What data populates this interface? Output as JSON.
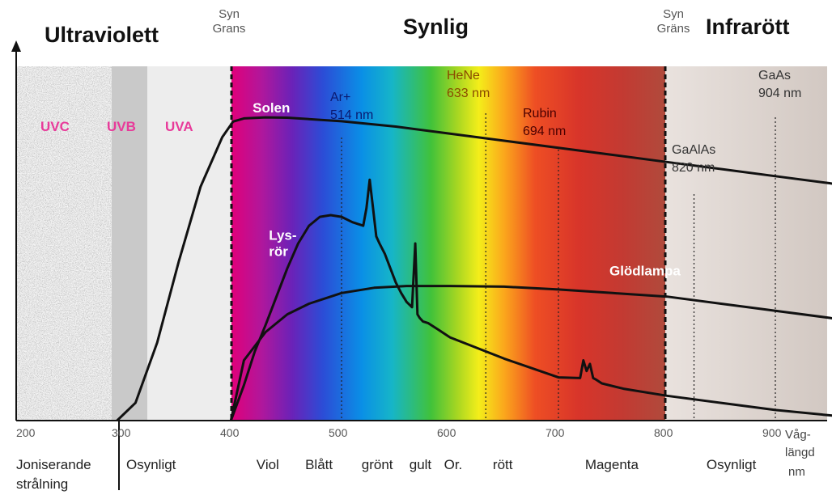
{
  "chart_data": {
    "type": "line",
    "xlim": [
      200,
      1000
    ],
    "x_ticks": [
      200,
      300,
      400,
      500,
      600,
      700,
      800,
      900
    ],
    "x_unit_label": [
      "Våg-",
      "längd",
      "nm"
    ],
    "region_titles": {
      "ultraviolet": "Ultraviolett",
      "visible": "Synlig",
      "infrared": "Infrarött"
    },
    "boundary_labels": {
      "left": [
        "Syn",
        "Grans"
      ],
      "right": [
        "Syn",
        "Gräns"
      ]
    },
    "visible_range": [
      400,
      800
    ],
    "uv_bands": [
      "UVC",
      "UVB",
      "UVA"
    ],
    "bands": [
      {
        "label": [
          "Joniserande",
          "strålning"
        ],
        "x": 200,
        "x_end": 288
      },
      {
        "label": [
          "Osynligt"
        ],
        "x": 300,
        "x_end": 400
      },
      {
        "label": [
          "Viol"
        ],
        "x": 420
      },
      {
        "label": [
          "Blått"
        ],
        "x": 465
      },
      {
        "label": [
          "grönt"
        ],
        "x": 517
      },
      {
        "label": [
          "gult"
        ],
        "x": 561
      },
      {
        "label": [
          "Or."
        ],
        "x": 593
      },
      {
        "label": [
          "rött"
        ],
        "x": 638
      },
      {
        "label": [
          "Magenta"
        ],
        "x": 723
      },
      {
        "label": [
          "Osynligt"
        ],
        "x": 835
      }
    ],
    "lasers": [
      {
        "name": "Ar+",
        "value": "514 nm",
        "x": 500,
        "color": "#1a1a6a"
      },
      {
        "name": "HeNe",
        "value": "633 nm",
        "x": 633,
        "color": "#a05a00"
      },
      {
        "name": "Rubin",
        "value": "694 nm",
        "x": 700,
        "color": "#5a0000"
      },
      {
        "name": "GaAlAs",
        "value": "820 nm",
        "x": 825,
        "color": "#333333"
      },
      {
        "name": "GaAs",
        "value": "904 nm",
        "x": 900,
        "color": "#333333"
      }
    ],
    "series": [
      {
        "name": "Solen",
        "label_x": 418,
        "label_y": 0.87,
        "x": [
          293,
          310,
          330,
          350,
          370,
          390,
          400,
          410,
          430,
          450,
          500,
          550,
          600,
          650,
          700,
          750,
          800,
          850,
          900,
          950,
          1000
        ],
        "y": [
          0.0,
          0.05,
          0.22,
          0.45,
          0.66,
          0.8,
          0.844,
          0.853,
          0.856,
          0.855,
          0.845,
          0.83,
          0.81,
          0.79,
          0.77,
          0.75,
          0.73,
          0.71,
          0.69,
          0.67,
          0.645
        ]
      },
      {
        "name": [
          "Lys-",
          "rör"
        ],
        "label_x": 433,
        "label_y": 0.51,
        "x": [
          398,
          410,
          420,
          430,
          440,
          450,
          460,
          470,
          480,
          490,
          500,
          510,
          520,
          523,
          526,
          529,
          532,
          535,
          540,
          545,
          550,
          555,
          560,
          565,
          568,
          570,
          572,
          575,
          580,
          590,
          600,
          650,
          700,
          720,
          723,
          726,
          729,
          732,
          735,
          740,
          760,
          800,
          850,
          900,
          1000
        ],
        "y": [
          0.0,
          0.1,
          0.195,
          0.27,
          0.35,
          0.43,
          0.5,
          0.55,
          0.575,
          0.58,
          0.575,
          0.56,
          0.55,
          0.6,
          0.68,
          0.6,
          0.52,
          0.5,
          0.47,
          0.43,
          0.39,
          0.36,
          0.335,
          0.32,
          0.5,
          0.3,
          0.29,
          0.28,
          0.275,
          0.255,
          0.235,
          0.175,
          0.122,
          0.12,
          0.17,
          0.14,
          0.16,
          0.12,
          0.115,
          0.105,
          0.09,
          0.07,
          0.05,
          0.03,
          0.0
        ]
      },
      {
        "name": "Glödlampa",
        "label_x": 747,
        "label_y": 0.41,
        "x": [
          398,
          410,
          430,
          450,
          470,
          500,
          530,
          560,
          600,
          650,
          700,
          750,
          800,
          850,
          900,
          950,
          1000
        ],
        "y": [
          0.0,
          0.17,
          0.25,
          0.3,
          0.33,
          0.36,
          0.375,
          0.38,
          0.38,
          0.378,
          0.37,
          0.36,
          0.35,
          0.33,
          0.31,
          0.29,
          0.265
        ]
      }
    ]
  }
}
